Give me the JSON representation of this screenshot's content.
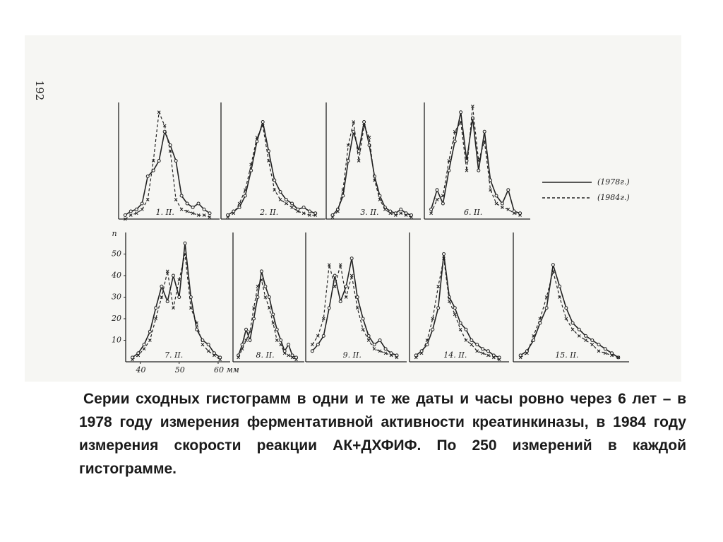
{
  "page_number": "192",
  "chart_data": [
    {
      "type": "line",
      "title": "1. II.",
      "x": [
        38,
        39.5,
        41,
        42.5,
        44,
        45.5,
        47,
        48.5,
        50,
        51.5,
        53,
        54.5,
        56,
        57.5,
        59,
        60.5
      ],
      "xlim": [
        37,
        62
      ],
      "ylim": [
        0,
        60
      ],
      "series": [
        {
          "color": "#222",
          "values": [
            2,
            4,
            5,
            8,
            22,
            25,
            30,
            45,
            38,
            30,
            12,
            8,
            6,
            8,
            5,
            3
          ]
        },
        {
          "color": "#222",
          "values": [
            0,
            2,
            3,
            5,
            10,
            30,
            55,
            48,
            35,
            10,
            5,
            4,
            3,
            2,
            2,
            1
          ]
        }
      ]
    },
    {
      "type": "line",
      "title": "2. II.",
      "x": [
        38,
        39.5,
        41,
        42.5,
        44,
        45.5,
        47,
        48.5,
        50,
        51.5,
        53,
        54.5,
        56,
        57.5,
        59,
        60.5
      ],
      "xlim": [
        37,
        62
      ],
      "ylim": [
        0,
        60
      ],
      "series": [
        {
          "color": "#222",
          "values": [
            2,
            4,
            6,
            12,
            25,
            40,
            50,
            35,
            20,
            14,
            10,
            8,
            5,
            6,
            4,
            3
          ]
        },
        {
          "color": "#222",
          "values": [
            1,
            3,
            8,
            15,
            28,
            42,
            48,
            30,
            15,
            10,
            8,
            6,
            4,
            3,
            2,
            2
          ]
        }
      ]
    },
    {
      "type": "line",
      "title": "3. II.",
      "x": [
        38,
        39.5,
        41,
        42.5,
        44,
        45.5,
        47,
        48.5,
        50,
        51.5,
        53,
        54.5,
        56,
        57.5,
        59,
        60.5
      ],
      "xlim": [
        37,
        62
      ],
      "ylim": [
        0,
        60
      ],
      "series": [
        {
          "color": "#222",
          "values": [
            2,
            5,
            12,
            30,
            45,
            35,
            50,
            38,
            22,
            12,
            6,
            4,
            3,
            5,
            3,
            2
          ]
        },
        {
          "color": "#222",
          "values": [
            1,
            4,
            15,
            38,
            50,
            30,
            48,
            42,
            20,
            10,
            5,
            3,
            2,
            3,
            2,
            1
          ]
        }
      ]
    },
    {
      "type": "line",
      "title": "6. II.",
      "x": [
        38,
        39.5,
        41,
        42.5,
        44,
        45.5,
        47,
        48.5,
        50,
        51.5,
        53,
        54.5,
        56,
        57.5,
        59,
        60.5
      ],
      "xlim": [
        37,
        62
      ],
      "ylim": [
        0,
        60
      ],
      "series": [
        {
          "name": "(1978г.)",
          "color": "#222",
          "values": [
            5,
            15,
            8,
            25,
            40,
            55,
            30,
            52,
            25,
            45,
            20,
            12,
            8,
            15,
            4,
            3
          ]
        },
        {
          "name": "(1984г.)",
          "color": "#222",
          "values": [
            3,
            10,
            12,
            30,
            45,
            50,
            25,
            58,
            30,
            40,
            15,
            8,
            6,
            5,
            3,
            2
          ]
        }
      ]
    },
    {
      "type": "line",
      "title": "7. II.",
      "y_label": "n",
      "x": [
        38,
        39.5,
        41,
        42.5,
        44,
        45.5,
        47,
        48.5,
        50,
        51.5,
        53,
        54.5,
        56,
        57.5,
        59,
        60.5
      ],
      "xlim": [
        37,
        62
      ],
      "ylim": [
        0,
        60
      ],
      "yticks": [
        10,
        20,
        30,
        40,
        50
      ],
      "xticks": [
        40,
        50,
        {
          "value": 60,
          "label": "60 мм"
        }
      ],
      "series": [
        {
          "color": "#222",
          "values": [
            2,
            4,
            8,
            14,
            25,
            35,
            28,
            40,
            30,
            55,
            30,
            15,
            10,
            8,
            4,
            2
          ]
        },
        {
          "color": "#222",
          "values": [
            1,
            3,
            6,
            10,
            20,
            30,
            42,
            25,
            38,
            50,
            25,
            18,
            8,
            5,
            3,
            1
          ]
        }
      ]
    },
    {
      "type": "line",
      "title": "8. II.",
      "x": [
        38,
        39.5,
        41,
        42.5,
        44,
        45.5,
        47,
        48.5,
        50,
        51.5,
        53,
        54.5,
        56,
        57.5,
        59,
        60.5
      ],
      "xlim": [
        37,
        62
      ],
      "ylim": [
        0,
        60
      ],
      "series": [
        {
          "color": "#222",
          "values": [
            3,
            8,
            15,
            10,
            20,
            30,
            42,
            35,
            30,
            22,
            15,
            10,
            5,
            8,
            3,
            2
          ]
        },
        {
          "color": "#222",
          "values": [
            2,
            6,
            10,
            14,
            25,
            35,
            38,
            30,
            25,
            18,
            10,
            8,
            4,
            3,
            2,
            1
          ]
        }
      ]
    },
    {
      "type": "line",
      "title": "9. II.",
      "x": [
        38,
        39.5,
        41,
        42.5,
        44,
        45.5,
        47,
        48.5,
        50,
        51.5,
        53,
        54.5,
        56,
        57.5,
        59,
        60.5
      ],
      "xlim": [
        37,
        62
      ],
      "ylim": [
        0,
        60
      ],
      "series": [
        {
          "color": "#222",
          "values": [
            5,
            8,
            12,
            25,
            40,
            28,
            35,
            48,
            30,
            20,
            12,
            8,
            10,
            6,
            4,
            3
          ]
        },
        {
          "color": "#222",
          "values": [
            8,
            12,
            20,
            45,
            35,
            45,
            30,
            40,
            25,
            15,
            10,
            6,
            5,
            4,
            3,
            2
          ]
        }
      ]
    },
    {
      "type": "line",
      "title": "14. II.",
      "x": [
        38,
        39.5,
        41,
        42.5,
        44,
        45.5,
        47,
        48.5,
        50,
        51.5,
        53,
        54.5,
        56,
        57.5,
        59,
        60.5
      ],
      "xlim": [
        37,
        62
      ],
      "ylim": [
        0,
        60
      ],
      "series": [
        {
          "color": "#222",
          "values": [
            3,
            5,
            8,
            15,
            25,
            50,
            30,
            25,
            18,
            15,
            10,
            8,
            6,
            5,
            3,
            2
          ]
        },
        {
          "color": "#222",
          "values": [
            2,
            4,
            10,
            20,
            35,
            48,
            28,
            22,
            15,
            10,
            8,
            5,
            4,
            3,
            2,
            1
          ]
        }
      ]
    },
    {
      "type": "line",
      "title": "15. II.",
      "x": [
        38,
        39.5,
        41,
        42.5,
        44,
        45.5,
        47,
        48.5,
        50,
        51.5,
        53,
        54.5,
        56,
        57.5,
        59,
        60.5
      ],
      "xlim": [
        37,
        62
      ],
      "ylim": [
        0,
        60
      ],
      "series": [
        {
          "color": "#222",
          "values": [
            3,
            5,
            10,
            18,
            25,
            45,
            35,
            25,
            18,
            15,
            12,
            10,
            8,
            6,
            4,
            2
          ]
        },
        {
          "color": "#222",
          "values": [
            2,
            4,
            12,
            20,
            30,
            42,
            30,
            20,
            15,
            12,
            10,
            8,
            5,
            4,
            3,
            2
          ]
        }
      ]
    }
  ],
  "caption": "Серии сходных гистограмм в одни и те же даты и часы ровно через 6 лет – в 1978 году измерения ферментативной активности креатинкиназы, в 1984 году измерения скорости реакции АК+ДХФИФ. По 250 измерений в каждой гистограмме."
}
